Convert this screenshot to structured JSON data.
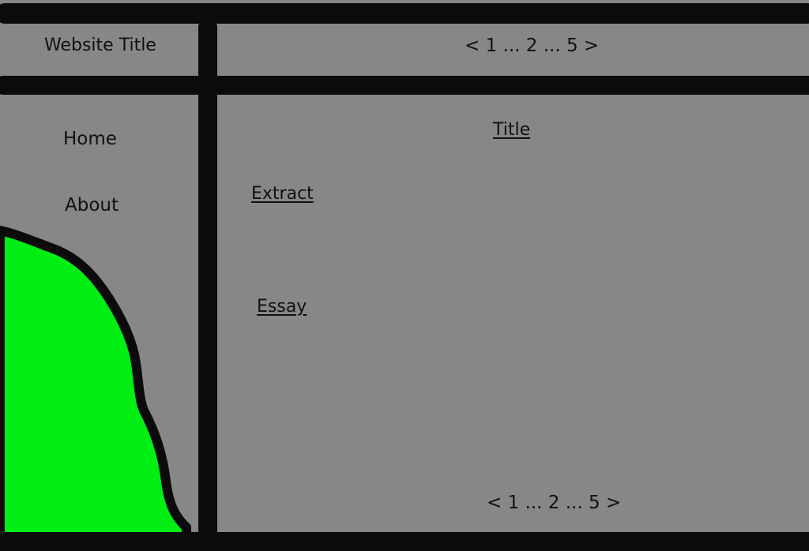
{
  "header": {
    "site_title": "Website Title",
    "pagination": "< 1 ... 2 ... 5 >"
  },
  "sidebar": {
    "items": [
      {
        "label": "Home"
      },
      {
        "label": "About"
      }
    ]
  },
  "main": {
    "title": "Title",
    "extract": "Extract",
    "essay": "Essay"
  },
  "footer": {
    "pagination": "< 1 ... 2 ... 5 >"
  },
  "colors": {
    "background": "#878787",
    "border": "#0b0b0b",
    "decoration": "#00ee14"
  }
}
